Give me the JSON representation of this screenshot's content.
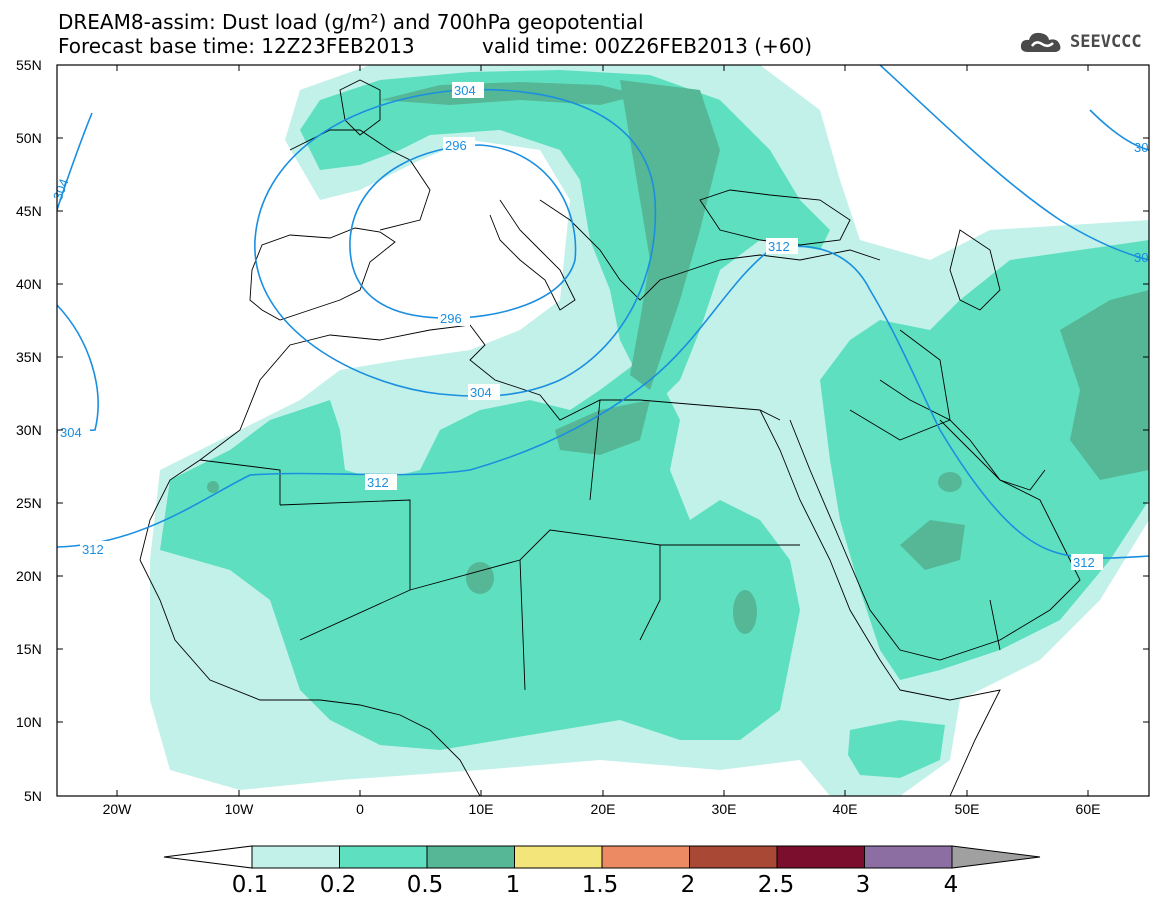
{
  "title": {
    "line1": "DREAM8-assim: Dust load (g/m²) and 700hPa geopotential",
    "line2a": "Forecast base time: 12Z23FEB2013",
    "line2b": "valid time: 00Z26FEB2013 (+60)"
  },
  "logo": {
    "text": "SEEVCCC",
    "icon": "cloud-icon"
  },
  "axes": {
    "y_ticks": [
      "55N",
      "50N",
      "45N",
      "40N",
      "35N",
      "30N",
      "25N",
      "20N",
      "15N",
      "10N",
      "5N"
    ],
    "x_ticks": [
      "20W",
      "10W",
      "0",
      "10E",
      "20E",
      "30E",
      "40E",
      "50E",
      "60E"
    ]
  },
  "contours": {
    "labels": [
      "304",
      "296",
      "296",
      "304",
      "304",
      "312",
      "312",
      "312",
      "312",
      "296",
      "30",
      "30"
    ],
    "color": "#1a8fe0"
  },
  "colorbar": {
    "levels": [
      "0.1",
      "0.2",
      "0.5",
      "1",
      "1.5",
      "2",
      "2.5",
      "3",
      "4"
    ],
    "colors": [
      "#c2f1ea",
      "#5ee0c0",
      "#55b795",
      "#f4e57a",
      "#ec8b63",
      "#a94835",
      "#7a0e2c",
      "#8d6ea3"
    ]
  },
  "colors": {
    "light": "#c2f1ea",
    "medium": "#5ee0c0",
    "dark": "#55b795"
  }
}
